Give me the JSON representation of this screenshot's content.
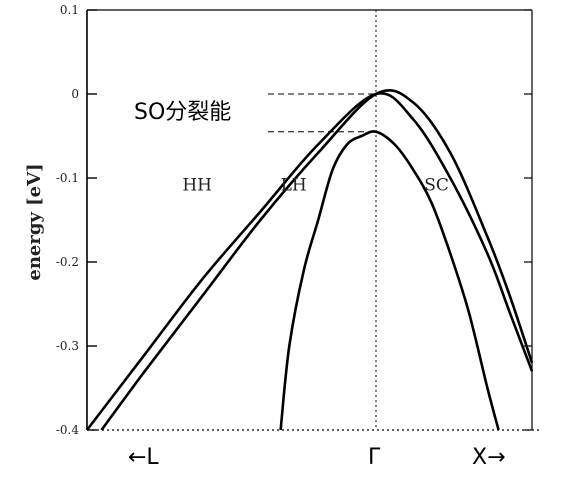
{
  "chart_data": {
    "type": "line",
    "title": "",
    "ylabel": "energy [eV]",
    "xlabel": "",
    "ylim": [
      -0.4,
      0.1
    ],
    "yticks": [
      {
        "value": 0.1,
        "label": "0.1"
      },
      {
        "value": 0.0,
        "label": "0"
      },
      {
        "value": -0.1,
        "label": "-0.1"
      },
      {
        "value": -0.2,
        "label": "-0.2"
      },
      {
        "value": -0.3,
        "label": "-0.3"
      },
      {
        "value": -0.4,
        "label": "-0.4"
      }
    ],
    "x_axis_labels": {
      "left": "←L",
      "center": "Γ",
      "right": "X→"
    },
    "xlim": [
      -1,
      0.42
    ],
    "gamma_x": 0,
    "series": [
      {
        "name": "HH",
        "x": [
          -1.0,
          -0.8,
          -0.6,
          -0.4,
          -0.2,
          0.0,
          0.1,
          0.2,
          0.3,
          0.36,
          0.42
        ],
        "y": [
          -0.4,
          -0.31,
          -0.22,
          -0.14,
          -0.06,
          0.0,
          -0.03,
          -0.1,
          -0.19,
          -0.26,
          -0.33
        ]
      },
      {
        "name": "LH",
        "x": [
          -0.95,
          -0.8,
          -0.6,
          -0.4,
          -0.2,
          0.0,
          0.1,
          0.2,
          0.3,
          0.36,
          0.42
        ],
        "y": [
          -0.4,
          -0.33,
          -0.24,
          -0.15,
          -0.07,
          0.0,
          -0.01,
          -0.07,
          -0.17,
          -0.24,
          -0.32
        ]
      },
      {
        "name": "SO",
        "x": [
          -0.33,
          -0.3,
          -0.25,
          -0.2,
          -0.15,
          -0.1,
          -0.05,
          0.0,
          0.05,
          0.1,
          0.15,
          0.2,
          0.25,
          0.3,
          0.33
        ],
        "y": [
          -0.4,
          -0.3,
          -0.21,
          -0.15,
          -0.09,
          -0.06,
          -0.05,
          -0.045,
          -0.06,
          -0.09,
          -0.13,
          -0.19,
          -0.26,
          -0.35,
          -0.4
        ]
      }
    ],
    "band_labels": [
      {
        "text": "HH",
        "x": -0.67,
        "y": -0.115
      },
      {
        "text": "LH",
        "x": -0.33,
        "y": -0.115
      },
      {
        "text": "SC",
        "x": 0.13,
        "y": -0.115
      }
    ],
    "annotation": {
      "text": "SO分裂能",
      "upper_level": 0.0,
      "lower_level": -0.045
    }
  }
}
